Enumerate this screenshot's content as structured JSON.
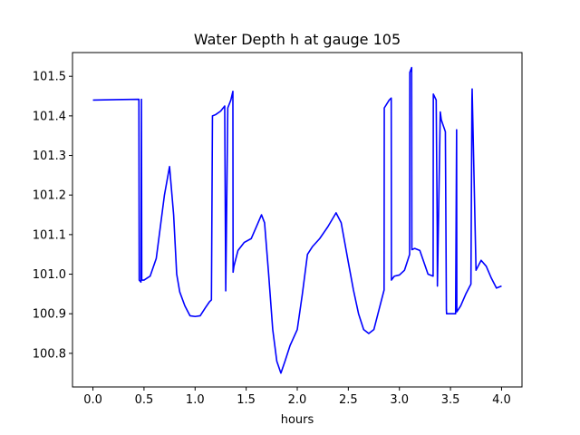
{
  "chart_data": {
    "type": "line",
    "title": "Water Depth h at gauge 105",
    "xlabel": "hours",
    "ylabel": "",
    "xlim": [
      -0.2,
      4.2
    ],
    "ylim": [
      100.715,
      101.56
    ],
    "x_ticks": [
      0.0,
      0.5,
      1.0,
      1.5,
      2.0,
      2.5,
      3.0,
      3.5,
      4.0
    ],
    "x_tick_labels": [
      "0.0",
      "0.5",
      "1.0",
      "1.5",
      "2.0",
      "2.5",
      "3.0",
      "3.5",
      "4.0"
    ],
    "y_ticks": [
      100.8,
      100.9,
      101.0,
      101.1,
      101.2,
      101.3,
      101.4,
      101.5
    ],
    "y_tick_labels": [
      "100.8",
      "100.9",
      "101.0",
      "101.1",
      "101.2",
      "101.3",
      "101.4",
      "101.5"
    ],
    "grid": false,
    "series": [
      {
        "color": "#0000ff",
        "x": [
          0.0,
          0.45,
          0.453,
          0.47,
          0.475,
          0.478,
          0.5,
          0.56,
          0.62,
          0.66,
          0.7,
          0.75,
          0.79,
          0.82,
          0.85,
          0.9,
          0.95,
          1.0,
          1.05,
          1.1,
          1.14,
          1.16,
          1.17,
          1.2,
          1.25,
          1.29,
          1.3,
          1.32,
          1.35,
          1.37,
          1.372,
          1.38,
          1.42,
          1.48,
          1.55,
          1.6,
          1.65,
          1.68,
          1.72,
          1.76,
          1.8,
          1.84,
          1.88,
          1.93,
          2.0,
          2.05,
          2.1,
          2.15,
          2.22,
          2.3,
          2.38,
          2.43,
          2.5,
          2.55,
          2.6,
          2.65,
          2.7,
          2.75,
          2.8,
          2.85,
          2.852,
          2.9,
          2.92,
          2.922,
          2.95,
          3.0,
          3.05,
          3.1,
          3.102,
          3.12,
          3.122,
          3.15,
          3.2,
          3.28,
          3.33,
          3.332,
          3.36,
          3.37,
          3.372,
          3.4,
          3.41,
          3.45,
          3.46,
          3.462,
          3.5,
          3.55,
          3.56,
          3.562,
          3.6,
          3.65,
          3.7,
          3.71,
          3.712,
          3.75,
          3.8,
          3.85,
          3.9,
          3.95,
          4.0
        ],
        "y": [
          101.44,
          101.442,
          100.985,
          100.98,
          101.442,
          100.985,
          100.985,
          100.995,
          101.04,
          101.12,
          101.2,
          101.272,
          101.15,
          101.0,
          100.955,
          100.92,
          100.895,
          100.893,
          100.895,
          100.915,
          100.93,
          100.935,
          101.4,
          101.403,
          101.412,
          101.425,
          100.958,
          101.42,
          101.44,
          101.462,
          101.005,
          101.02,
          101.06,
          101.08,
          101.09,
          101.12,
          101.15,
          101.13,
          101.0,
          100.86,
          100.78,
          100.75,
          100.78,
          100.82,
          100.86,
          100.95,
          101.05,
          101.07,
          101.09,
          101.12,
          101.155,
          101.13,
          101.03,
          100.96,
          100.9,
          100.86,
          100.85,
          100.86,
          100.91,
          100.96,
          101.42,
          101.44,
          101.445,
          100.985,
          100.995,
          100.998,
          101.01,
          101.05,
          101.51,
          101.522,
          101.062,
          101.065,
          101.06,
          101.0,
          100.995,
          101.455,
          101.44,
          101.12,
          100.97,
          101.41,
          101.39,
          101.36,
          100.91,
          100.9,
          100.9,
          100.9,
          101.365,
          100.905,
          100.92,
          100.95,
          100.975,
          101.44,
          101.468,
          101.01,
          101.035,
          101.02,
          100.99,
          100.965,
          100.97
        ]
      }
    ]
  }
}
